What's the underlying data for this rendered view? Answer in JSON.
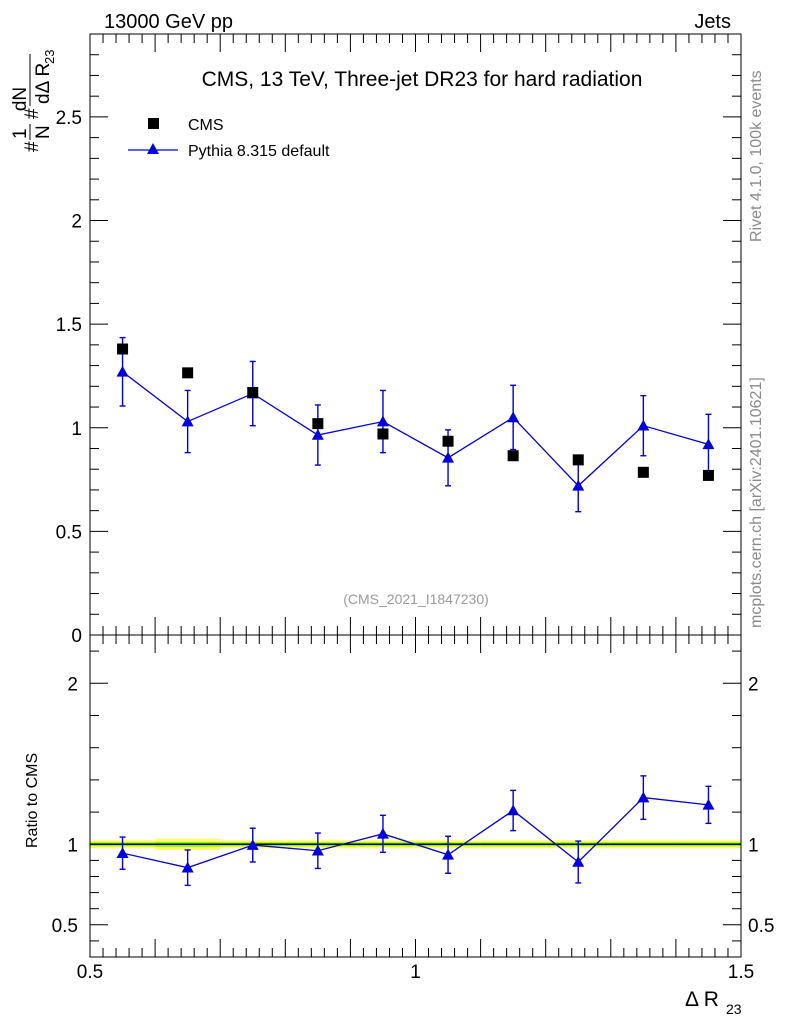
{
  "header": {
    "left": "13000 GeV pp",
    "right": "Jets"
  },
  "side_labels": {
    "rivet": "Rivet 4.1.0,  100k events",
    "mcplots": "mcplots.cern.ch [arXiv:2401.10621]"
  },
  "colors": {
    "data": "#000000",
    "mc": "#0000dd",
    "band_inner": "#7cfc00",
    "band_outer": "#ffff66"
  },
  "chart_data": [
    {
      "type": "scatter",
      "title": "CMS, 13 TeV, Three-jet DR23 for hard radiation",
      "analysis_id": "(CMS_2021_I1847230)",
      "ylabel": {
        "frac_num": "1",
        "frac_den": "N",
        "hash": "#",
        "deriv_num": "dN",
        "deriv_den": "dΔ R",
        "deriv_sub": "23",
        "lead": "#"
      },
      "xlim": [
        0.5,
        1.5
      ],
      "ylim": [
        0,
        2.9
      ],
      "yticks": [
        "0",
        "0.5",
        "1",
        "1.5",
        "2",
        "2.5"
      ],
      "legend_position": "top-left",
      "series": [
        {
          "name": "CMS",
          "marker": "square",
          "x": [
            0.55,
            0.65,
            0.75,
            0.85,
            0.95,
            1.05,
            1.15,
            1.25,
            1.35,
            1.45
          ],
          "y": [
            1.38,
            1.265,
            1.17,
            1.02,
            0.97,
            0.935,
            0.865,
            0.845,
            0.785,
            0.77
          ]
        },
        {
          "name": "Pythia 8.315 default",
          "marker": "triangle",
          "x": [
            0.55,
            0.65,
            0.75,
            0.85,
            0.95,
            1.05,
            1.15,
            1.25,
            1.35,
            1.45
          ],
          "y": [
            1.27,
            1.03,
            1.165,
            0.965,
            1.03,
            0.855,
            1.05,
            0.72,
            1.01,
            0.92
          ],
          "err": [
            0.165,
            0.15,
            0.155,
            0.145,
            0.15,
            0.135,
            0.155,
            0.125,
            0.145,
            0.145
          ]
        }
      ]
    },
    {
      "type": "scatter",
      "ylabel": "Ratio to CMS",
      "xlabel_main": "Δ R",
      "xlabel_sub": "23",
      "xlim": [
        0.5,
        1.5
      ],
      "xticks": [
        "0.5",
        "1",
        "1.5"
      ],
      "ylim": [
        0.3,
        2.3
      ],
      "yticks": [
        "0.5",
        "1",
        "2"
      ],
      "reference": 1.0,
      "band": {
        "x": [
          0.5,
          0.6,
          0.7,
          0.8,
          0.9,
          1.0,
          1.1,
          1.2,
          1.3,
          1.4,
          1.5
        ],
        "inner": [
          0.012,
          0.015,
          0.012,
          0.012,
          0.012,
          0.012,
          0.012,
          0.012,
          0.012,
          0.012
        ],
        "outer": [
          0.025,
          0.035,
          0.025,
          0.025,
          0.025,
          0.025,
          0.025,
          0.025,
          0.025,
          0.025
        ]
      },
      "series": [
        {
          "name": "Pythia 8.315 default",
          "marker": "triangle",
          "x": [
            0.55,
            0.65,
            0.75,
            0.85,
            0.95,
            1.05,
            1.15,
            1.25,
            1.35,
            1.45
          ],
          "y": [
            0.945,
            0.855,
            0.995,
            0.96,
            1.065,
            0.935,
            1.21,
            0.89,
            1.29,
            1.245
          ],
          "err": [
            0.1,
            0.11,
            0.105,
            0.11,
            0.115,
            0.115,
            0.125,
            0.13,
            0.135,
            0.115
          ]
        }
      ]
    }
  ]
}
